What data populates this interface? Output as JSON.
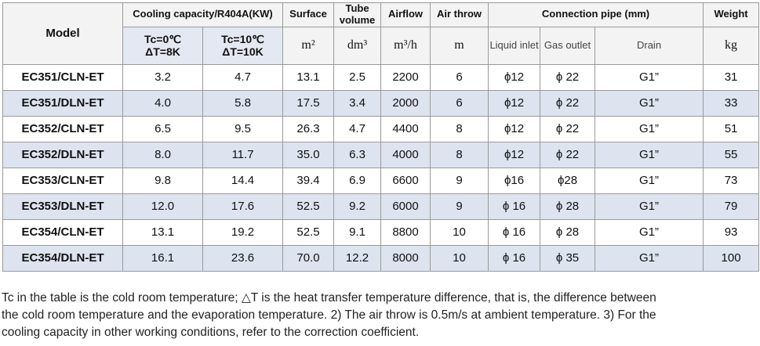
{
  "table": {
    "header": {
      "model": "Model",
      "cooling_capacity": "Cooling capacity/R404A(KW)",
      "surface": "Surface",
      "tube_volume": "Tube volume",
      "airflow": "Airflow",
      "air_throw": "Air throw",
      "connection_pipe": "Connection pipe (mm)",
      "weight": "Weight"
    },
    "subheader": [
      [
        "Tc=0℃",
        "ΔT=8K"
      ],
      [
        "Tc=10℃",
        "ΔT=10K"
      ],
      "m²",
      "dm³",
      "m³/h",
      "m",
      "Liquid inlet",
      "Gas outlet",
      "Drain",
      "kg"
    ],
    "rows": [
      [
        "EC351/CLN-ET",
        "3.2",
        "4.7",
        "13.1",
        "2.5",
        "2200",
        "6",
        "ϕ12",
        "ϕ 22",
        "G1”",
        "31"
      ],
      [
        "EC351/DLN-ET",
        "4.0",
        "5.8",
        "17.5",
        "3.4",
        "2000",
        "6",
        "ϕ12",
        "ϕ 22",
        "G1”",
        "33"
      ],
      [
        "EC352/CLN-ET",
        "6.5",
        "9.5",
        "26.3",
        "4.7",
        "4400",
        "8",
        "ϕ12",
        "ϕ 22",
        "G1”",
        "51"
      ],
      [
        "EC352/DLN-ET",
        "8.0",
        "11.7",
        "35.0",
        "6.3",
        "4000",
        "8",
        "ϕ12",
        "ϕ 22",
        "G1”",
        "55"
      ],
      [
        "EC353/CLN-ET",
        "9.8",
        "14.4",
        "39.4",
        "6.9",
        "6600",
        "9",
        "ϕ16",
        "ϕ28",
        "G1”",
        "73"
      ],
      [
        "EC353/DLN-ET",
        "12.0",
        "17.6",
        "52.5",
        "9.2",
        "6000",
        "9",
        "ϕ 16",
        "ϕ 28",
        "G1”",
        "79"
      ],
      [
        "EC354/CLN-ET",
        "13.1",
        "19.2",
        "52.5",
        "9.1",
        "8800",
        "10",
        "ϕ 16",
        "ϕ 28",
        "G1”",
        "93"
      ],
      [
        "EC354/DLN-ET",
        "16.1",
        "23.6",
        "70.0",
        "12.2",
        "8000",
        "10",
        "ϕ 16",
        "ϕ 35",
        "G1”",
        "100"
      ]
    ]
  },
  "footnote": "Tc in the table is the cold room temperature; △T is the heat transfer temperature difference, that is, the difference between the cold room temperature and the evaporation temperature. 2) The air throw is 0.5m/s at ambient temperature. 3) For the cooling capacity in other working conditions, refer to the correction coefficient."
}
